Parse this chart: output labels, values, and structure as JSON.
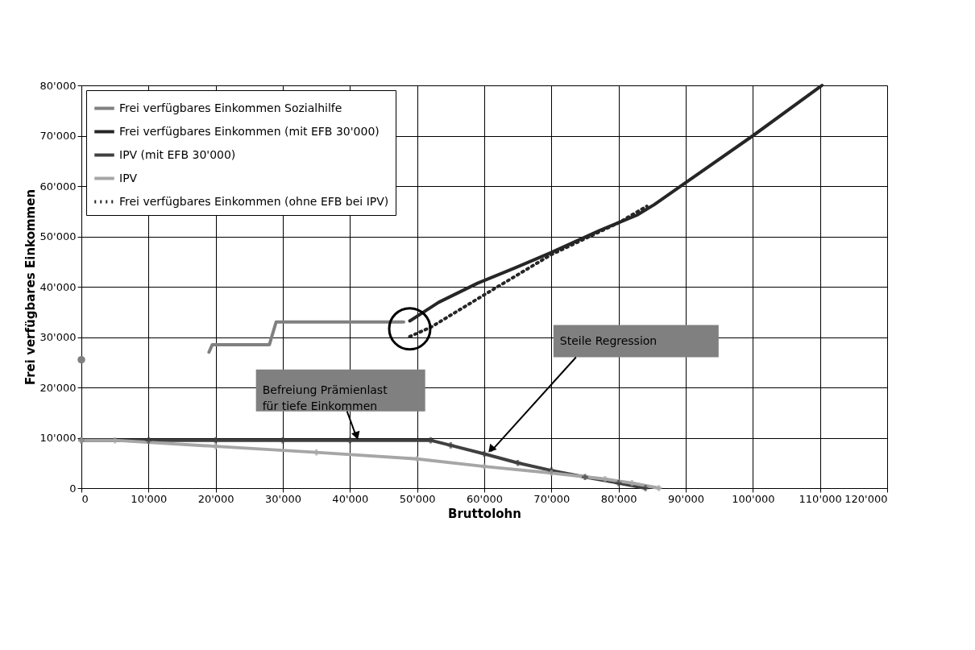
{
  "chart_data": {
    "type": "line",
    "xlabel": "Bruttolohn",
    "ylabel": "Frei verfügbares Einkommen",
    "xlim": [
      0,
      120000
    ],
    "ylim": [
      0,
      80000
    ],
    "xticks": [
      0,
      {
        "value": 10000,
        "label": "10'000"
      },
      {
        "value": 20000,
        "label": "20'000"
      },
      {
        "value": 30000,
        "label": "30'000"
      },
      {
        "value": 40000,
        "label": "40'000"
      },
      {
        "value": 50000,
        "label": "50'000"
      },
      {
        "value": 60000,
        "label": "60'000"
      },
      {
        "value": 70000,
        "label": "70'000"
      },
      {
        "value": 80000,
        "label": "80'000"
      },
      {
        "value": 90000,
        "label": "90'000"
      },
      {
        "value": 100000,
        "label": "100'000"
      },
      {
        "value": 110000,
        "label": "110'000"
      },
      {
        "value": 120000,
        "label": "120'000"
      }
    ],
    "yticks": [
      0,
      {
        "value": 10000,
        "label": "10'000"
      },
      {
        "value": 20000,
        "label": "20'000"
      },
      {
        "value": 30000,
        "label": "30'000"
      },
      {
        "value": 40000,
        "label": "40'000"
      },
      {
        "value": 50000,
        "label": "50'000"
      },
      {
        "value": 60000,
        "label": "60'000"
      },
      {
        "value": 70000,
        "label": "70'000"
      },
      {
        "value": 80000,
        "label": "80'000"
      }
    ],
    "grid": true,
    "legend": "top left",
    "series": [
      {
        "name": "Frei verfügbares Einkommen Sozialhilfe",
        "color": "#808080",
        "x": [
          0,
          9500,
          19000,
          19500,
          28000,
          29000,
          48000
        ],
        "values": [
          25500,
          null,
          27000,
          28500,
          28500,
          33000,
          33000
        ]
      },
      {
        "name": "Frei verfügbares Einkommen (mit EFB 30'000)",
        "color": "#262626",
        "x": [
          48900,
          53200,
          59000,
          64500,
          69800,
          77200,
          82700,
          85300,
          89800,
          100000,
          110300
        ],
        "values": [
          33200,
          36900,
          40700,
          43700,
          46700,
          51200,
          54200,
          56300,
          60500,
          70000,
          80000
        ]
      },
      {
        "name": "IPV (mit EFB 30'000)",
        "color": "#404040",
        "marker": "cross",
        "x": [
          0,
          10000,
          20000,
          30000,
          40000,
          52000,
          55000,
          60000,
          65000,
          70000,
          75000,
          80000,
          84000
        ],
        "values": [
          9500,
          9500,
          9500,
          9500,
          9500,
          9500,
          8500,
          6800,
          5000,
          3500,
          2200,
          1000,
          0
        ]
      },
      {
        "name": "IPV",
        "color": "#a6a6a6",
        "marker": "cross",
        "x": [
          0,
          5000,
          20000,
          35000,
          50000,
          60000,
          70000,
          78000,
          82000,
          86000
        ],
        "values": [
          9500,
          9500,
          8300,
          7100,
          5800,
          4300,
          3000,
          1800,
          1000,
          0
        ]
      },
      {
        "name": "Frei verfügbares Einkommen (ohne EFB bei IPV)",
        "color": "#262626",
        "line_style": "dotted",
        "x": [
          48900,
          52100,
          60000,
          70000,
          80000,
          84200
        ],
        "values": [
          30100,
          32000,
          38400,
          46400,
          52700,
          56000
        ]
      }
    ],
    "annotations": [
      {
        "text": "Befreiung Prämienlast\nfür tiefe Einkommen",
        "x": 41000,
        "y": 9500
      },
      {
        "text": "Steile Regression",
        "x": 61000,
        "y": 6800
      }
    ]
  }
}
